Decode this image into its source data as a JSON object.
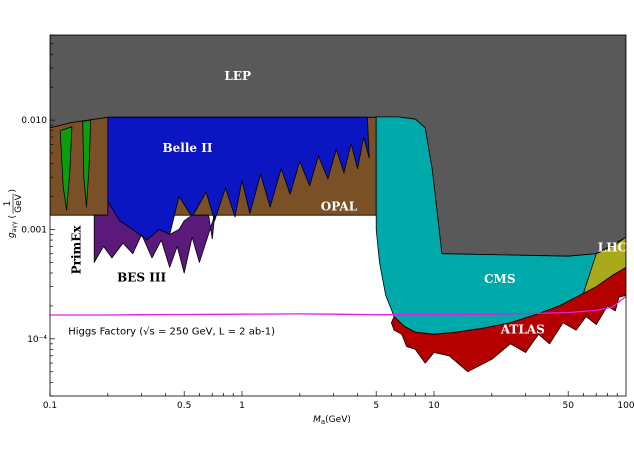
{
  "chart_data": {
    "type": "area",
    "title": "",
    "xlabel": "M_a (GeV)",
    "xlabel_main": "M",
    "xlabel_sub": "a",
    "xlabel_unit": "(GeV)",
    "ylabel_main": "g",
    "ylabel_sub": "aγγ",
    "ylabel_frac_num": "1",
    "ylabel_frac_den": "GeV",
    "x_scale": "log",
    "y_scale": "log",
    "xlim": [
      0.1,
      100
    ],
    "ylim": [
      3e-05,
      0.06
    ],
    "grid": false,
    "x_ticks": [
      {
        "value": 0.1,
        "label": "0.1"
      },
      {
        "value": 0.5,
        "label": "0.5"
      },
      {
        "value": 1,
        "label": "1"
      },
      {
        "value": 5,
        "label": "5"
      },
      {
        "value": 10,
        "label": "10"
      },
      {
        "value": 50,
        "label": "50"
      },
      {
        "value": 100,
        "label": "100"
      }
    ],
    "y_ticks": [
      {
        "value": 0.01,
        "label": "0.010"
      },
      {
        "value": 0.001,
        "label": "0.001"
      },
      {
        "value": 0.0001,
        "label": "10⁻⁴"
      }
    ],
    "regions": [
      {
        "name": "LEP",
        "color": "#595959",
        "boundary": [
          [
            0.1,
            0.0085
          ],
          [
            0.13,
            0.0095
          ],
          [
            0.2,
            0.0106
          ],
          [
            0.5,
            0.0106
          ],
          [
            1,
            0.0106
          ],
          [
            2,
            0.0106
          ],
          [
            4.9,
            0.0106
          ],
          [
            5,
            0.0107
          ],
          [
            6.5,
            0.0107
          ],
          [
            8,
            0.0102
          ],
          [
            9,
            0.0085
          ],
          [
            9.8,
            0.0035
          ],
          [
            11,
            0.0006
          ],
          [
            30,
            0.00058
          ],
          [
            50,
            0.00057
          ],
          [
            70,
            0.0006
          ],
          [
            85,
            0.0007
          ],
          [
            100,
            0.00085
          ]
        ]
      },
      {
        "name": "OPAL",
        "color": "#7a5127",
        "points": [
          [
            0.1,
            0.0085
          ],
          [
            0.13,
            0.0095
          ],
          [
            0.2,
            0.0106
          ],
          [
            5,
            0.0106
          ],
          [
            5,
            0.00135
          ],
          [
            0.1,
            0.00135
          ]
        ]
      },
      {
        "name": "PrimEx",
        "color": "#0a9e0a",
        "points": [
          [
            0.113,
            0.008
          ],
          [
            0.13,
            0.0087
          ],
          [
            0.127,
            0.0035
          ],
          [
            0.122,
            0.0015
          ],
          [
            0.117,
            0.0025
          ]
        ]
      },
      {
        "name": "PrimEx",
        "color": "#0a9e0a",
        "points": [
          [
            0.148,
            0.0097
          ],
          [
            0.163,
            0.01
          ],
          [
            0.16,
            0.004
          ],
          [
            0.155,
            0.0016
          ],
          [
            0.15,
            0.003
          ]
        ]
      },
      {
        "name": "Belle II",
        "color": "#0b15c2",
        "points": [
          [
            0.2,
            0.0106
          ],
          [
            4.5,
            0.0106
          ],
          [
            4.6,
            0.0045
          ],
          [
            4.3,
            0.007
          ],
          [
            4.0,
            0.0036
          ],
          [
            3.7,
            0.0061
          ],
          [
            3.4,
            0.0033
          ],
          [
            3.1,
            0.0054
          ],
          [
            2.8,
            0.0029
          ],
          [
            2.5,
            0.0047
          ],
          [
            2.25,
            0.0025
          ],
          [
            2.0,
            0.0042
          ],
          [
            1.78,
            0.0021
          ],
          [
            1.6,
            0.0036
          ],
          [
            1.4,
            0.0016
          ],
          [
            1.25,
            0.0032
          ],
          [
            1.1,
            0.0014
          ],
          [
            1.0,
            0.0028
          ],
          [
            0.92,
            0.0013
          ],
          [
            0.82,
            0.0024
          ],
          [
            0.72,
            0.0012
          ],
          [
            0.65,
            0.0022
          ],
          [
            0.55,
            0.0013
          ],
          [
            0.47,
            0.002
          ],
          [
            0.42,
            0.0009
          ],
          [
            0.37,
            0.001
          ],
          [
            0.32,
            0.0008
          ],
          [
            0.27,
            0.001
          ],
          [
            0.23,
            0.0012
          ],
          [
            0.2,
            0.0018
          ]
        ]
      },
      {
        "name": "BES III",
        "color": "#5b1a7a",
        "points": [
          [
            0.17,
            0.00135
          ],
          [
            0.2,
            0.00135
          ],
          [
            0.2,
            0.0018
          ],
          [
            0.23,
            0.0012
          ],
          [
            0.27,
            0.001
          ],
          [
            0.32,
            0.0008
          ],
          [
            0.37,
            0.001
          ],
          [
            0.42,
            0.0009
          ],
          [
            0.47,
            0.001
          ],
          [
            0.5,
            0.0012
          ],
          [
            0.55,
            0.00135
          ],
          [
            0.6,
            0.00135
          ],
          [
            0.67,
            0.00135
          ],
          [
            0.7,
            0.00082
          ],
          [
            0.72,
            0.00135
          ],
          [
            0.6,
            0.0005
          ],
          [
            0.55,
            0.00085
          ],
          [
            0.5,
            0.0004
          ],
          [
            0.46,
            0.0007
          ],
          [
            0.42,
            0.00045
          ],
          [
            0.38,
            0.0008
          ],
          [
            0.34,
            0.00055
          ],
          [
            0.3,
            0.0009
          ],
          [
            0.27,
            0.0006
          ],
          [
            0.24,
            0.00075
          ],
          [
            0.21,
            0.00055
          ],
          [
            0.19,
            0.0007
          ],
          [
            0.17,
            0.0005
          ]
        ]
      },
      {
        "name": "CMS",
        "color": "#00a9a9",
        "boundary_top": [
          [
            5,
            0.0107
          ],
          [
            6.5,
            0.0107
          ],
          [
            8,
            0.0102
          ],
          [
            9,
            0.0085
          ],
          [
            9.8,
            0.0035
          ],
          [
            11,
            0.0006
          ],
          [
            30,
            0.00058
          ],
          [
            50,
            0.00057
          ],
          [
            70,
            0.0006
          ],
          [
            100,
            0.00085
          ]
        ],
        "boundary_bottom": [
          [
            100,
            0.00045
          ],
          [
            85,
            0.00038
          ],
          [
            70,
            0.0003
          ],
          [
            55,
            0.00024
          ],
          [
            45,
            0.0002
          ],
          [
            35,
            0.00017
          ],
          [
            25,
            0.00014
          ],
          [
            18,
            0.000125
          ],
          [
            13,
            0.000115
          ],
          [
            10,
            0.00011
          ],
          [
            8,
            0.000115
          ],
          [
            7,
            0.00013
          ],
          [
            6.2,
            0.00016
          ],
          [
            5.6,
            0.00025
          ],
          [
            5.2,
            0.0005
          ],
          [
            5,
            0.001
          ]
        ]
      },
      {
        "name": "ATLAS",
        "color": "#b50000",
        "points": [
          [
            6.2,
            0.00016
          ],
          [
            7,
            0.00013
          ],
          [
            8,
            0.000115
          ],
          [
            10,
            0.00011
          ],
          [
            13,
            0.000115
          ],
          [
            18,
            0.000125
          ],
          [
            25,
            0.00014
          ],
          [
            35,
            0.00017
          ],
          [
            45,
            0.0002
          ],
          [
            55,
            0.00024
          ],
          [
            70,
            0.0003
          ],
          [
            85,
            0.00038
          ],
          [
            100,
            0.00045
          ],
          [
            100,
            0.00025
          ],
          [
            92,
            0.00024
          ],
          [
            88,
            0.00018
          ],
          [
            80,
            0.0002
          ],
          [
            70,
            0.000135
          ],
          [
            62,
            0.00016
          ],
          [
            55,
            0.00012
          ],
          [
            47,
            0.00014
          ],
          [
            40,
            9e-05
          ],
          [
            35,
            0.00011
          ],
          [
            30,
            7.5e-05
          ],
          [
            25,
            9e-05
          ],
          [
            20,
            6.5e-05
          ],
          [
            15,
            5e-05
          ],
          [
            12,
            7e-05
          ],
          [
            10,
            7.5e-05
          ],
          [
            9,
            6e-05
          ],
          [
            8,
            8e-05
          ],
          [
            7.2,
            8.5e-05
          ],
          [
            6.8,
            0.00011
          ],
          [
            6.2,
            0.00012
          ],
          [
            6,
            0.00014
          ]
        ]
      },
      {
        "name": "LHC",
        "color": "#a8aa1c",
        "points": [
          [
            70,
            0.0006
          ],
          [
            85,
            0.0007
          ],
          [
            100,
            0.00085
          ],
          [
            100,
            0.00045
          ],
          [
            85,
            0.00038
          ],
          [
            70,
            0.0003
          ],
          [
            60,
            0.00026
          ]
        ]
      }
    ],
    "series": [
      {
        "name": "Higgs Factory (√s = 250 GeV, L = 2 ab-1)",
        "color": "#e020e0",
        "x": [
          0.1,
          0.2,
          0.3,
          0.5,
          1,
          2,
          3,
          5,
          10,
          20,
          30,
          50,
          70,
          85,
          100
        ],
        "values": [
          0.000165,
          0.000165,
          0.000166,
          0.000167,
          0.000168,
          0.000169,
          0.000168,
          0.000166,
          0.000166,
          0.000168,
          0.00017,
          0.000174,
          0.000182,
          0.000195,
          0.000245
        ]
      }
    ],
    "annotations": [
      {
        "text": "LEP",
        "x": 0.95,
        "y": 0.025,
        "color": "#ffffff"
      },
      {
        "text": "Belle II",
        "x": 0.52,
        "y": 0.0055,
        "color": "#ffffff"
      },
      {
        "text": "OPAL",
        "x": 3.2,
        "y": 0.0016,
        "color": "#ffffff"
      },
      {
        "text": "PrimEx",
        "x": 0.138,
        "y": 0.00065,
        "color": "#000000",
        "rotate": true
      },
      {
        "text": "BES III",
        "x": 0.3,
        "y": 0.00036,
        "color": "#000000"
      },
      {
        "text": "CMS",
        "x": 22,
        "y": 0.00035,
        "color": "#ffffff"
      },
      {
        "text": "ATLAS",
        "x": 29,
        "y": 0.00012,
        "color": "#ffffff"
      },
      {
        "text": "LHC",
        "x": 85,
        "y": 0.00068,
        "color": "#ffffff"
      },
      {
        "text": "Higgs Factory (√s = 250 GeV, L = 2 ab-1)",
        "x": 0.43,
        "y": 0.000117,
        "color": "#000000"
      }
    ]
  }
}
